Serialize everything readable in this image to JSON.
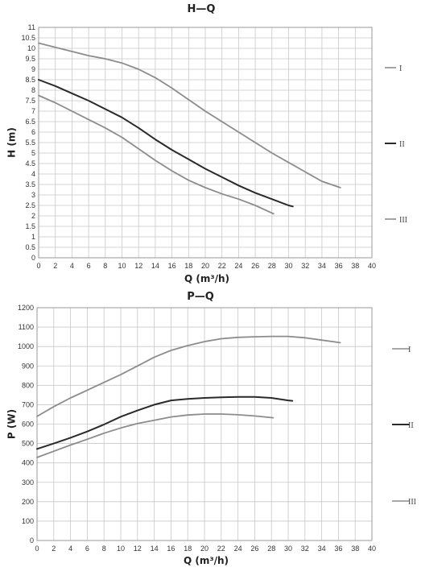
{
  "chart_data": [
    {
      "type": "line",
      "title": "H—Q",
      "xlabel": "Q (m³/h)",
      "ylabel": "H (m)",
      "xlim": [
        0,
        40
      ],
      "ylim": [
        0,
        11
      ],
      "x_ticks": [
        "0",
        "2",
        "4",
        "6",
        "8",
        "10",
        "12",
        "14",
        "16",
        "18",
        "20",
        "22",
        "24",
        "26",
        "28",
        "30",
        "32",
        "34",
        "36",
        "38",
        "40"
      ],
      "y_ticks": [
        "0",
        "0.5",
        "1",
        "1.5",
        "2",
        "2.5",
        "3",
        "3.5",
        "4",
        "4.5",
        "5",
        "5.5",
        "6",
        "6.5",
        "7",
        "7.5",
        "8",
        "8.5",
        "9",
        "9.5",
        "10",
        "10.5",
        "11"
      ],
      "grid": true,
      "legend_position": "right",
      "series": [
        {
          "name": "I",
          "color": "#8c8c8c",
          "x": [
            0,
            2,
            4,
            6,
            8,
            10,
            12,
            14,
            16,
            18,
            20,
            22,
            24,
            26,
            28,
            30,
            32,
            34,
            36.2
          ],
          "y": [
            10.25,
            10.05,
            9.85,
            9.65,
            9.5,
            9.3,
            9.0,
            8.6,
            8.1,
            7.55,
            7.0,
            6.5,
            6.0,
            5.5,
            5.0,
            4.55,
            4.1,
            3.65,
            3.35
          ]
        },
        {
          "name": "II",
          "color": "#2a2a2a",
          "x": [
            0,
            2,
            4,
            6,
            8,
            10,
            12,
            14,
            16,
            18,
            20,
            22,
            24,
            26,
            28,
            30,
            30.5
          ],
          "y": [
            8.5,
            8.2,
            7.85,
            7.5,
            7.1,
            6.7,
            6.2,
            5.65,
            5.15,
            4.7,
            4.25,
            3.85,
            3.45,
            3.1,
            2.8,
            2.5,
            2.45
          ]
        },
        {
          "name": "III",
          "color": "#8c8c8c",
          "x": [
            0,
            2,
            4,
            6,
            8,
            10,
            12,
            14,
            16,
            18,
            20,
            22,
            24,
            26,
            28.2
          ],
          "y": [
            7.75,
            7.4,
            7.0,
            6.6,
            6.2,
            5.75,
            5.2,
            4.65,
            4.15,
            3.7,
            3.35,
            3.05,
            2.8,
            2.5,
            2.1
          ]
        }
      ]
    },
    {
      "type": "line",
      "title": "P—Q",
      "xlabel": "Q (m³/h)",
      "ylabel": "P (W)",
      "xlim": [
        0,
        40
      ],
      "ylim": [
        0,
        1200
      ],
      "x_ticks": [
        "0",
        "2",
        "4",
        "6",
        "8",
        "10",
        "12",
        "14",
        "16",
        "18",
        "20",
        "22",
        "24",
        "26",
        "28",
        "30",
        "32",
        "34",
        "36",
        "38",
        "40"
      ],
      "y_ticks": [
        "0",
        "100",
        "200",
        "300",
        "400",
        "500",
        "600",
        "700",
        "800",
        "900",
        "1000",
        "1100",
        "1200"
      ],
      "grid": true,
      "legend_position": "right",
      "series": [
        {
          "name": "I",
          "color": "#8c8c8c",
          "x": [
            0,
            2,
            4,
            6,
            8,
            10,
            12,
            14,
            16,
            18,
            20,
            22,
            24,
            26,
            28,
            30,
            32,
            34,
            36.2
          ],
          "y": [
            640,
            690,
            735,
            775,
            815,
            855,
            900,
            945,
            980,
            1005,
            1025,
            1040,
            1047,
            1050,
            1052,
            1052,
            1045,
            1033,
            1020
          ]
        },
        {
          "name": "II",
          "color": "#2a2a2a",
          "x": [
            0,
            2,
            4,
            6,
            8,
            10,
            12,
            14,
            16,
            18,
            20,
            22,
            24,
            26,
            28,
            30,
            30.5
          ],
          "y": [
            472,
            500,
            530,
            562,
            598,
            638,
            670,
            700,
            722,
            730,
            735,
            738,
            740,
            740,
            735,
            722,
            720
          ]
        },
        {
          "name": "III",
          "color": "#8c8c8c",
          "x": [
            0,
            2,
            4,
            6,
            8,
            10,
            12,
            14,
            16,
            18,
            20,
            22,
            24,
            26,
            28.2
          ],
          "y": [
            428,
            460,
            492,
            522,
            553,
            580,
            603,
            620,
            637,
            647,
            652,
            652,
            648,
            642,
            633
          ]
        }
      ]
    }
  ]
}
